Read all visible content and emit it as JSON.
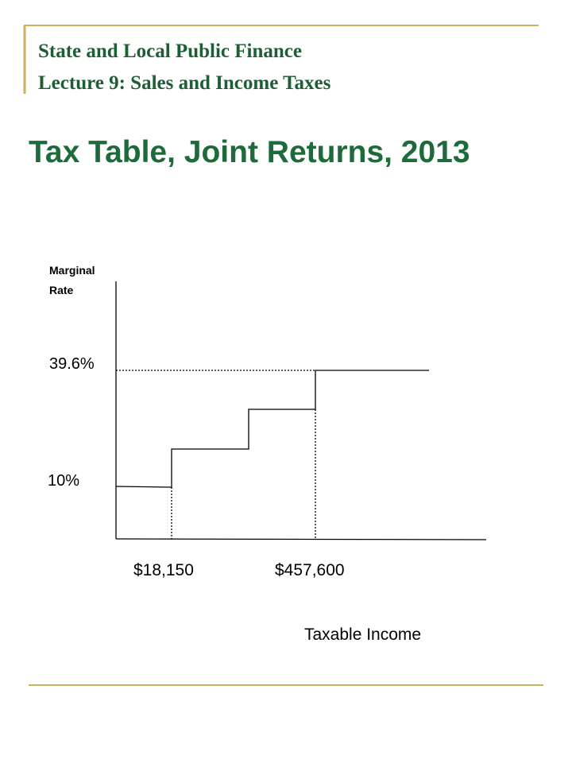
{
  "header": {
    "course": "State and Local Public Finance",
    "lecture": "Lecture 9:  Sales and Income Taxes"
  },
  "title": "Tax Table, Joint Returns, 2013",
  "diagram": {
    "y_axis_label": [
      "Marginal",
      "Rate"
    ],
    "rate_labels": [
      "39.6%",
      "10%"
    ],
    "income_labels": [
      "$18,150",
      "$457,600"
    ],
    "x_axis_label": "Taxable Income"
  }
}
